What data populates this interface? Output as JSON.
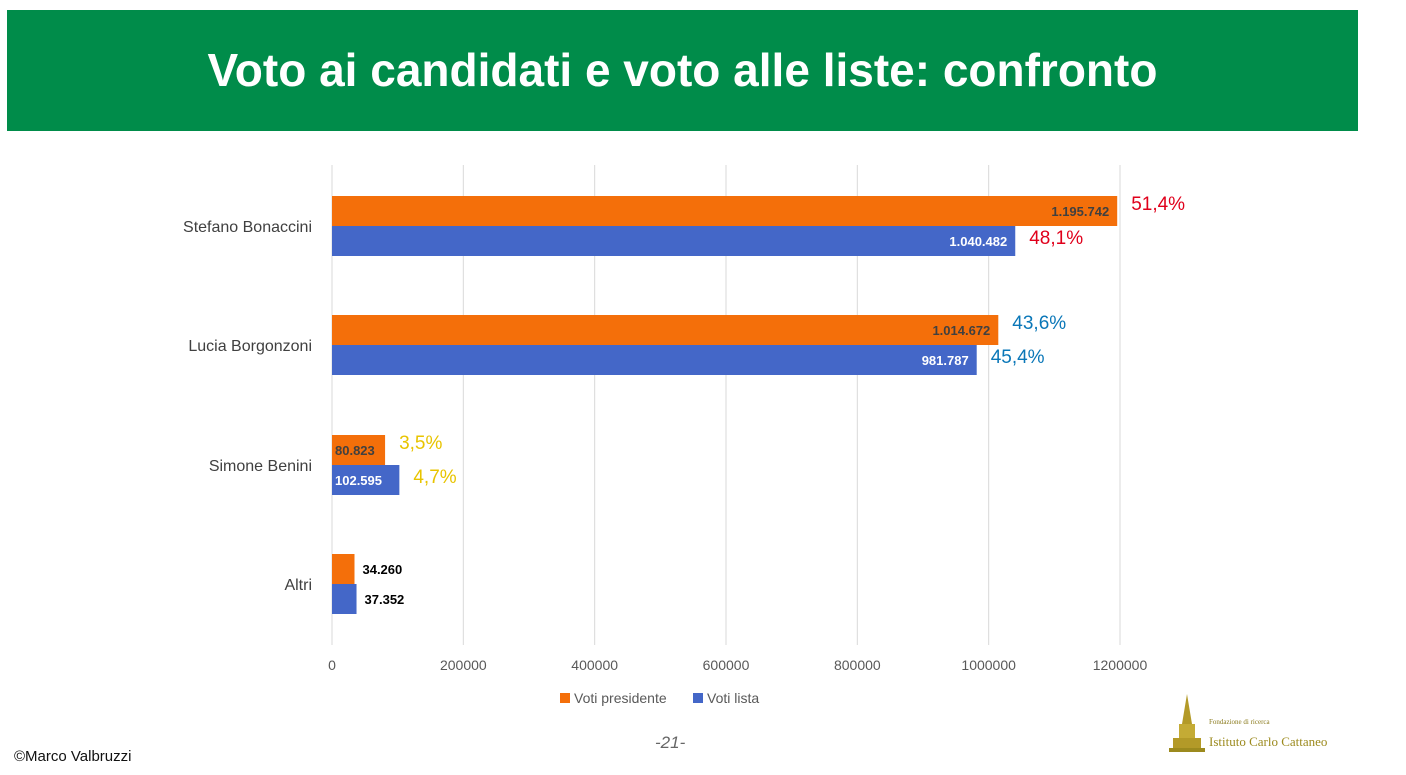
{
  "header": {
    "title": "Voto ai candidati e voto alle liste: confronto"
  },
  "footer": {
    "copyright": "©Marco Valbruzzi",
    "page_number": "-21-",
    "logo_subtitle": "Fondazione di ricerca",
    "logo_name": "Istituto Carlo Cattaneo"
  },
  "colors": {
    "banner": "#008c4a",
    "voti_presidente": "#f46f0a",
    "voti_lista": "#4467c8",
    "pct_bonaccini": "#e0001b",
    "pct_borgonzoni": "#0a77b8",
    "pct_benini": "#e8c400"
  },
  "chart_data": {
    "type": "bar",
    "orientation": "horizontal",
    "title": "",
    "xlabel": "",
    "ylabel": "",
    "xlim": [
      0,
      1200000
    ],
    "x_ticks": [
      "0",
      "200000",
      "400000",
      "600000",
      "800000",
      "1000000",
      "1200000"
    ],
    "grid": "vertical",
    "legend_position": "bottom",
    "categories": [
      "Stefano Bonaccini",
      "Lucia Borgonzoni",
      "Simone Benini",
      "Altri"
    ],
    "series": [
      {
        "name": "Voti presidente",
        "values": [
          1195742,
          1014672,
          80823,
          34260
        ],
        "labels": [
          "1.195.742",
          "1.014.672",
          "80.823",
          "34.260"
        ],
        "percent_labels": [
          "51,4%",
          "43,6%",
          "3,5%",
          ""
        ]
      },
      {
        "name": "Voti lista",
        "values": [
          1040482,
          981787,
          102595,
          37352
        ],
        "labels": [
          "1.040.482",
          "981.787",
          "102.595",
          "37.352"
        ],
        "percent_labels": [
          "48,1%",
          "45,4%",
          "4,7%",
          ""
        ]
      }
    ],
    "percent_colors": [
      "#e0001b",
      "#0a77b8",
      "#e8c400",
      "#000000"
    ]
  }
}
